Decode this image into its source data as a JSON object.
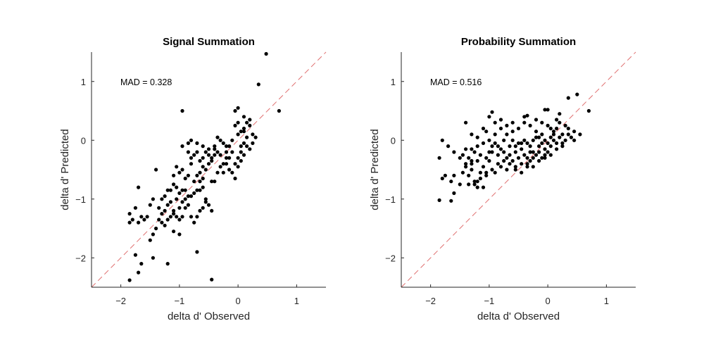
{
  "chart_data": [
    {
      "type": "scatter",
      "title": "Signal Summation",
      "xlabel": "delta d' Observed",
      "ylabel": "delta d' Predicted",
      "xlim": [
        -2.5,
        1.5
      ],
      "ylim": [
        -2.5,
        1.5
      ],
      "xticks": [
        -2,
        -1,
        0,
        1
      ],
      "yticks": [
        -2,
        -1,
        0,
        1
      ],
      "grid": false,
      "annotation": "MAD = 0.328",
      "reference_line": "y = x",
      "marker_color": "#000000",
      "reference_color": "#e07070",
      "points": [
        [
          0.48,
          1.47
        ],
        [
          0.35,
          0.95
        ],
        [
          0.7,
          0.5
        ],
        [
          0.2,
          0.35
        ],
        [
          0.1,
          0.2
        ],
        [
          0.05,
          0.15
        ],
        [
          0.0,
          0.3
        ],
        [
          0.0,
          0.1
        ],
        [
          -0.05,
          0.25
        ],
        [
          -0.1,
          0.0
        ],
        [
          -0.15,
          -0.1
        ],
        [
          0.25,
          0.1
        ],
        [
          0.3,
          0.05
        ],
        [
          0.15,
          0.05
        ],
        [
          0.1,
          -0.05
        ],
        [
          0.05,
          -0.2
        ],
        [
          0.0,
          -0.3
        ],
        [
          -0.05,
          -0.4
        ],
        [
          -0.15,
          -0.3
        ],
        [
          -0.2,
          -0.2
        ],
        [
          -0.25,
          -0.05
        ],
        [
          -0.3,
          0.0
        ],
        [
          -0.35,
          -0.2
        ],
        [
          -0.4,
          -0.25
        ],
        [
          -0.45,
          -0.35
        ],
        [
          -0.5,
          -0.4
        ],
        [
          -0.55,
          -0.5
        ],
        [
          -0.6,
          -0.45
        ],
        [
          -0.65,
          -0.55
        ],
        [
          -0.7,
          -0.6
        ],
        [
          -0.75,
          -0.7
        ],
        [
          -0.8,
          -0.4
        ],
        [
          -0.85,
          -0.2
        ],
        [
          -0.9,
          -0.85
        ],
        [
          -0.95,
          -0.85
        ],
        [
          -1.0,
          -0.9
        ],
        [
          -1.05,
          -1.0
        ],
        [
          -1.1,
          -1.2
        ],
        [
          -1.15,
          -1.3
        ],
        [
          -1.2,
          -1.35
        ],
        [
          -1.25,
          -1.45
        ],
        [
          -1.3,
          -1.4
        ],
        [
          -1.35,
          -1.35
        ],
        [
          -1.4,
          -1.5
        ],
        [
          -1.45,
          -1.6
        ],
        [
          -1.5,
          -1.7
        ],
        [
          -1.55,
          -1.3
        ],
        [
          -1.6,
          -1.35
        ],
        [
          -1.65,
          -1.3
        ],
        [
          -1.7,
          -1.4
        ],
        [
          -1.75,
          -1.15
        ],
        [
          -1.8,
          -1.35
        ],
        [
          -1.85,
          -1.25
        ],
        [
          -1.85,
          -1.4
        ],
        [
          -1.7,
          -2.25
        ],
        [
          -1.75,
          -1.95
        ],
        [
          -1.65,
          -2.1
        ],
        [
          -1.45,
          -2.0
        ],
        [
          -1.2,
          -2.1
        ],
        [
          -1.85,
          -2.38
        ],
        [
          -0.45,
          -2.37
        ],
        [
          -0.7,
          -1.9
        ],
        [
          -1.7,
          -0.8
        ],
        [
          -1.4,
          -0.5
        ],
        [
          -1.3,
          -1.0
        ],
        [
          -1.25,
          -0.95
        ],
        [
          -1.2,
          -0.85
        ],
        [
          -1.15,
          -0.85
        ],
        [
          -1.1,
          -0.75
        ],
        [
          -1.05,
          -0.8
        ],
        [
          -1.0,
          -1.35
        ],
        [
          -0.95,
          -1.3
        ],
        [
          -0.9,
          -1.15
        ],
        [
          -0.85,
          -1.1
        ],
        [
          -0.8,
          -0.95
        ],
        [
          -0.75,
          -0.9
        ],
        [
          -0.7,
          -0.85
        ],
        [
          -0.65,
          -0.85
        ],
        [
          -0.6,
          -0.8
        ],
        [
          -0.55,
          -1.0
        ],
        [
          -0.5,
          -1.1
        ],
        [
          -0.45,
          -1.2
        ],
        [
          -0.4,
          -0.7
        ],
        [
          -0.35,
          -0.55
        ],
        [
          -0.3,
          -0.45
        ],
        [
          -0.25,
          -0.4
        ],
        [
          -0.2,
          -0.4
        ],
        [
          -0.15,
          -0.5
        ],
        [
          -0.1,
          -0.55
        ],
        [
          -0.05,
          -0.65
        ],
        [
          0.0,
          -0.45
        ],
        [
          0.05,
          -0.35
        ],
        [
          0.1,
          -0.25
        ],
        [
          0.15,
          -0.1
        ],
        [
          0.2,
          -0.15
        ],
        [
          0.25,
          -0.05
        ],
        [
          -0.05,
          0.5
        ],
        [
          0.0,
          0.55
        ],
        [
          0.1,
          0.4
        ],
        [
          0.15,
          0.3
        ],
        [
          -0.2,
          -0.1
        ],
        [
          -0.25,
          -0.55
        ],
        [
          -0.35,
          0.05
        ],
        [
          -0.4,
          -0.15
        ],
        [
          -0.45,
          -0.3
        ],
        [
          -0.5,
          -0.25
        ],
        [
          -0.55,
          -0.2
        ],
        [
          -0.6,
          -0.3
        ],
        [
          -0.65,
          -0.35
        ],
        [
          -0.7,
          -0.2
        ],
        [
          -0.75,
          -0.25
        ],
        [
          -0.8,
          -0.3
        ],
        [
          -0.85,
          -0.6
        ],
        [
          -0.9,
          -0.65
        ],
        [
          -0.95,
          -0.5
        ],
        [
          -1.0,
          -0.55
        ],
        [
          -1.05,
          -0.45
        ],
        [
          -1.1,
          -0.6
        ],
        [
          -0.95,
          0.5
        ],
        [
          -0.95,
          -0.1
        ],
        [
          -0.85,
          -0.05
        ],
        [
          -0.8,
          0.0
        ],
        [
          -0.7,
          -0.05
        ],
        [
          -0.6,
          -0.1
        ],
        [
          -0.5,
          -0.15
        ],
        [
          -0.4,
          -0.1
        ],
        [
          -0.3,
          -0.25
        ],
        [
          -0.2,
          -0.3
        ],
        [
          -0.1,
          -0.2
        ],
        [
          0.05,
          -0.1
        ],
        [
          0.1,
          0.15
        ],
        [
          0.2,
          0.25
        ],
        [
          -1.35,
          -1.15
        ],
        [
          -1.3,
          -1.25
        ],
        [
          -1.25,
          -1.2
        ],
        [
          -1.2,
          -1.1
        ],
        [
          -1.15,
          -1.05
        ],
        [
          -1.1,
          -1.25
        ],
        [
          -1.05,
          -1.3
        ],
        [
          -1.0,
          -1.15
        ],
        [
          -0.95,
          -1.05
        ],
        [
          -0.9,
          -1.0
        ],
        [
          -0.85,
          -0.95
        ],
        [
          -0.8,
          -1.3
        ],
        [
          -0.75,
          -1.4
        ],
        [
          -0.7,
          -1.3
        ],
        [
          -0.65,
          -1.2
        ],
        [
          -0.6,
          -1.15
        ],
        [
          -1.45,
          -1.0
        ],
        [
          -1.5,
          -1.1
        ],
        [
          -1.0,
          -1.6
        ],
        [
          -1.1,
          -1.55
        ],
        [
          -0.55,
          -1.05
        ],
        [
          -0.45,
          -0.7
        ],
        [
          -0.6,
          -0.65
        ],
        [
          -0.65,
          -0.7
        ]
      ]
    },
    {
      "type": "scatter",
      "title": "Probability Summation",
      "xlabel": "delta d' Observed",
      "ylabel": "delta d' Predicted",
      "xlim": [
        -2.5,
        1.5
      ],
      "ylim": [
        -2.5,
        1.5
      ],
      "xticks": [
        -2,
        -1,
        0,
        1
      ],
      "yticks": [
        -2,
        -1,
        0,
        1
      ],
      "grid": false,
      "annotation": "MAD = 0.516",
      "reference_line": "y = x",
      "marker_color": "#000000",
      "reference_color": "#e07070",
      "points": [
        [
          0.5,
          0.78
        ],
        [
          0.35,
          0.72
        ],
        [
          0.7,
          0.5
        ],
        [
          0.0,
          0.52
        ],
        [
          -0.05,
          0.52
        ],
        [
          0.2,
          0.45
        ],
        [
          -0.95,
          0.48
        ],
        [
          -0.35,
          0.42
        ],
        [
          0.15,
          0.35
        ],
        [
          -0.1,
          0.3
        ],
        [
          0.0,
          0.25
        ],
        [
          -1.4,
          0.3
        ],
        [
          -1.3,
          0.1
        ],
        [
          -1.1,
          0.2
        ],
        [
          -1.05,
          0.15
        ],
        [
          -1.0,
          0.4
        ],
        [
          -0.9,
          0.3
        ],
        [
          -0.8,
          0.35
        ],
        [
          -0.7,
          0.1
        ],
        [
          -0.6,
          0.3
        ],
        [
          -0.5,
          0.2
        ],
        [
          -0.4,
          0.3
        ],
        [
          -0.3,
          0.25
        ],
        [
          -0.2,
          0.15
        ],
        [
          -0.1,
          0.1
        ],
        [
          0.05,
          0.2
        ],
        [
          0.1,
          0.15
        ],
        [
          0.25,
          0.1
        ],
        [
          0.3,
          0.25
        ],
        [
          0.35,
          0.2
        ],
        [
          0.4,
          0.05
        ],
        [
          0.45,
          0.0
        ],
        [
          0.55,
          0.1
        ],
        [
          -1.8,
          0.0
        ],
        [
          -1.7,
          -0.1
        ],
        [
          -1.6,
          -0.2
        ],
        [
          -1.5,
          -0.3
        ],
        [
          -1.4,
          -0.15
        ],
        [
          -1.35,
          -0.3
        ],
        [
          -1.3,
          -0.4
        ],
        [
          -1.25,
          -0.2
        ],
        [
          -1.2,
          -0.1
        ],
        [
          -1.15,
          -0.25
        ],
        [
          -1.1,
          -0.05
        ],
        [
          -1.05,
          -0.3
        ],
        [
          -1.0,
          -0.2
        ],
        [
          -0.95,
          -0.1
        ],
        [
          -0.9,
          -0.05
        ],
        [
          -0.85,
          -0.25
        ],
        [
          -0.8,
          -0.15
        ],
        [
          -0.75,
          0.0
        ],
        [
          -0.7,
          -0.3
        ],
        [
          -0.65,
          -0.1
        ],
        [
          -0.6,
          0.0
        ],
        [
          -0.55,
          -0.2
        ],
        [
          -0.5,
          -0.05
        ],
        [
          -0.45,
          -0.15
        ],
        [
          -0.4,
          0.0
        ],
        [
          -0.35,
          -0.3
        ],
        [
          -0.3,
          -0.1
        ],
        [
          -0.25,
          -0.2
        ],
        [
          -0.2,
          0.05
        ],
        [
          -0.15,
          -0.1
        ],
        [
          -0.1,
          -0.05
        ],
        [
          -0.05,
          -0.15
        ],
        [
          0.0,
          -0.2
        ],
        [
          0.05,
          -0.1
        ],
        [
          0.1,
          0.0
        ],
        [
          0.15,
          -0.05
        ],
        [
          0.2,
          0.05
        ],
        [
          0.25,
          -0.1
        ],
        [
          0.3,
          0.0
        ],
        [
          -1.85,
          -0.3
        ],
        [
          -1.75,
          -0.6
        ],
        [
          -1.65,
          -0.7
        ],
        [
          -1.6,
          -0.9
        ],
        [
          -1.45,
          -0.55
        ],
        [
          -1.4,
          -0.45
        ],
        [
          -1.35,
          -0.6
        ],
        [
          -1.3,
          -0.5
        ],
        [
          -1.25,
          -0.7
        ],
        [
          -1.2,
          -0.8
        ],
        [
          -1.15,
          -0.55
        ],
        [
          -1.1,
          -0.45
        ],
        [
          -1.05,
          -0.6
        ],
        [
          -1.0,
          -0.35
        ],
        [
          -0.95,
          -0.5
        ],
        [
          -0.9,
          -0.55
        ],
        [
          -0.85,
          -0.4
        ],
        [
          -0.8,
          -0.45
        ],
        [
          -0.75,
          -0.35
        ],
        [
          -0.7,
          -0.5
        ],
        [
          -0.65,
          -0.4
        ],
        [
          -0.6,
          -0.35
        ],
        [
          -0.55,
          -0.45
        ],
        [
          -0.5,
          -0.3
        ],
        [
          -0.45,
          -0.4
        ],
        [
          -0.4,
          -0.25
        ],
        [
          -0.35,
          -0.45
        ],
        [
          -0.3,
          -0.35
        ],
        [
          -0.25,
          -0.3
        ],
        [
          -0.2,
          -0.25
        ],
        [
          -0.15,
          -0.2
        ],
        [
          -0.1,
          -0.3
        ],
        [
          -0.05,
          -0.25
        ],
        [
          0.0,
          -0.05
        ],
        [
          0.05,
          0.05
        ],
        [
          0.1,
          0.1
        ],
        [
          -1.85,
          -1.02
        ],
        [
          -1.65,
          -1.03
        ],
        [
          -1.8,
          -0.65
        ],
        [
          -1.6,
          -0.6
        ],
        [
          -1.5,
          -0.75
        ],
        [
          -1.35,
          -0.75
        ],
        [
          -1.25,
          -0.75
        ],
        [
          -1.2,
          -0.7
        ],
        [
          -1.15,
          -0.65
        ],
        [
          -1.1,
          -0.8
        ],
        [
          -1.05,
          -0.55
        ],
        [
          -1.4,
          -0.4
        ],
        [
          -1.45,
          -0.25
        ],
        [
          -1.3,
          -0.35
        ],
        [
          -1.2,
          -0.35
        ],
        [
          -0.95,
          -0.2
        ],
        [
          -0.85,
          -0.1
        ],
        [
          -0.75,
          -0.2
        ],
        [
          -0.65,
          -0.25
        ],
        [
          -0.55,
          -0.1
        ],
        [
          -0.45,
          -0.05
        ],
        [
          -0.35,
          -0.05
        ],
        [
          -0.25,
          0.0
        ],
        [
          -0.15,
          0.05
        ],
        [
          -0.05,
          0.0
        ],
        [
          0.15,
          0.2
        ],
        [
          0.2,
          0.3
        ],
        [
          -0.2,
          0.35
        ],
        [
          -0.4,
          0.4
        ],
        [
          -0.6,
          0.15
        ],
        [
          -0.7,
          0.25
        ],
        [
          -0.8,
          0.2
        ],
        [
          -0.9,
          0.1
        ],
        [
          -1.0,
          0.0
        ],
        [
          -1.2,
          0.05
        ],
        [
          -1.3,
          -0.15
        ],
        [
          -0.55,
          -0.5
        ],
        [
          -0.45,
          -0.55
        ],
        [
          -0.35,
          -0.4
        ],
        [
          -0.25,
          -0.45
        ],
        [
          -0.15,
          -0.35
        ],
        [
          -0.05,
          -0.3
        ],
        [
          0.05,
          -0.25
        ],
        [
          0.15,
          -0.15
        ],
        [
          0.25,
          -0.05
        ],
        [
          0.35,
          0.1
        ],
        [
          0.45,
          0.15
        ],
        [
          -0.3,
          -0.2
        ]
      ]
    }
  ]
}
